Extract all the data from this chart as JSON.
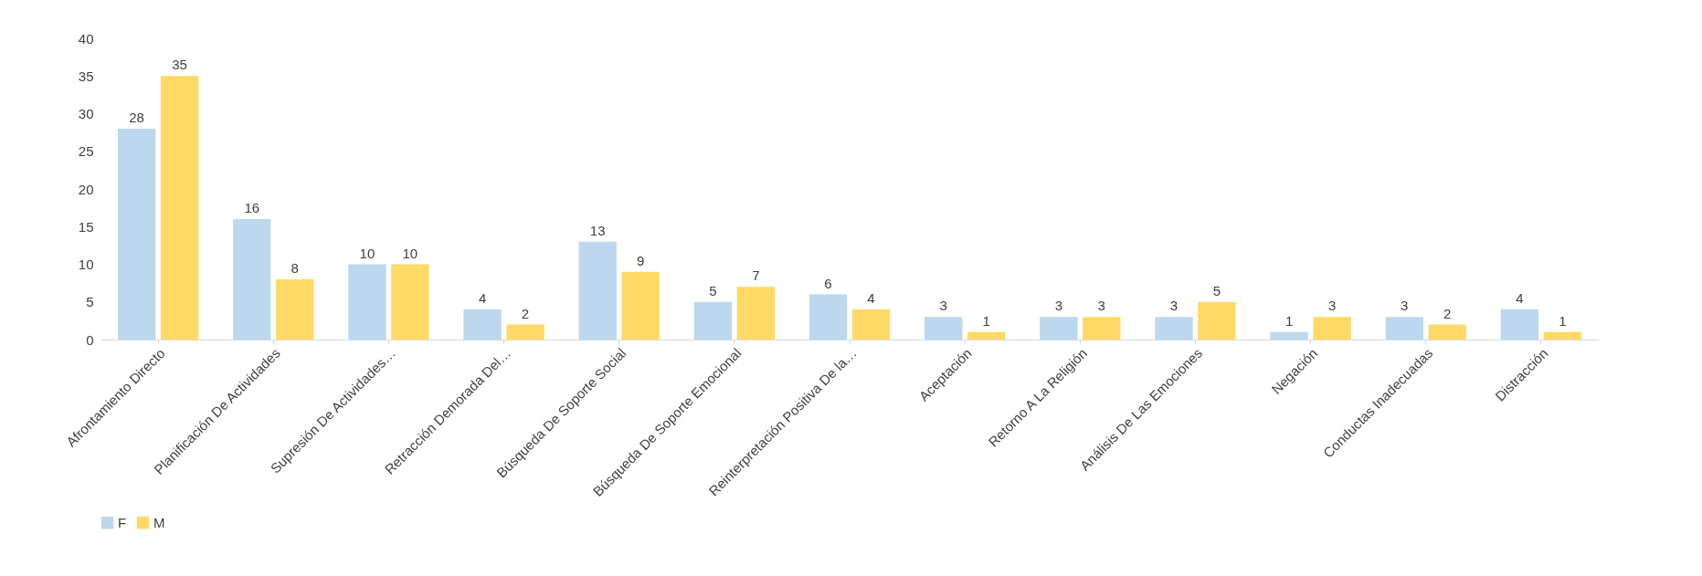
{
  "chart_data": {
    "type": "bar",
    "categories": [
      "Afrontamiento Directo",
      "Planificación De Actividades",
      "Supresión De Actividades…",
      "Retracción Demorada Del…",
      "Búsqueda De Soporte Social",
      "Búsqueda De Soporte Emocional",
      "Reinterpretación Positiva De la…",
      "Aceptación",
      "Retorno A La Religión",
      "Análisis De Las Emociones",
      "Negación",
      "Conductas Inadecuadas",
      "Distracción"
    ],
    "series": [
      {
        "name": "F",
        "color": "#bdd7ee",
        "values": [
          28,
          16,
          10,
          4,
          13,
          5,
          6,
          3,
          3,
          3,
          1,
          3,
          4
        ]
      },
      {
        "name": "M",
        "color": "#ffd966",
        "values": [
          35,
          8,
          10,
          2,
          9,
          7,
          4,
          1,
          3,
          5,
          3,
          2,
          1
        ]
      }
    ],
    "ylim": [
      0,
      40
    ],
    "yticks": [
      0,
      5,
      10,
      15,
      20,
      25,
      30,
      35,
      40
    ],
    "grid": false,
    "legend": "bottom",
    "data_labels": true
  }
}
